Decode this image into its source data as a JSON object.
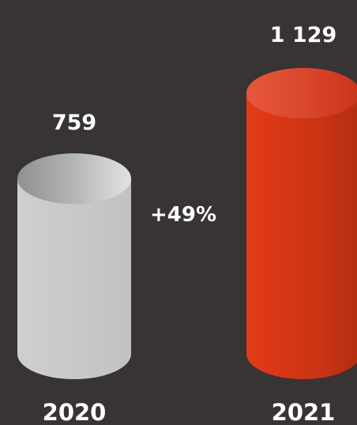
{
  "chart_data": {
    "type": "bar",
    "categories": [
      "2020",
      "2021"
    ],
    "values": [
      759,
      1129
    ],
    "value_labels": [
      "759",
      "1 129"
    ],
    "change_label": "+49%",
    "colors": {
      "background": "#373433",
      "bar_2020": "#c8c8c8",
      "bar_2021": "#d83418",
      "text": "#ffffff"
    }
  }
}
